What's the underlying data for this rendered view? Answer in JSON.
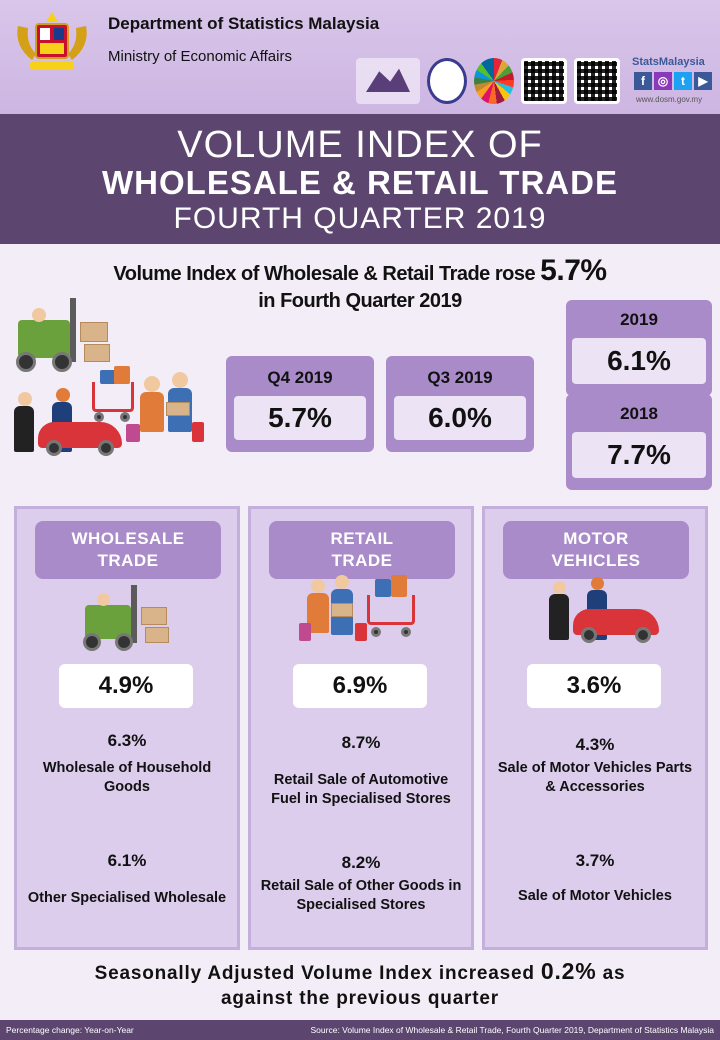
{
  "header": {
    "department": "Department of Statistics Malaysia",
    "ministry": "Ministry of Economic Affairs",
    "brand": "StatsMalaysia",
    "website": "www.dosm.gov.my"
  },
  "title": {
    "line1": "VOLUME INDEX OF",
    "line2": "WHOLESALE & RETAIL TRADE",
    "line3": "FOURTH QUARTER 2019"
  },
  "headline": {
    "text": "Volume Index of Wholesale & Retail Trade rose ",
    "value": "5.7%",
    "line2": "in Fourth Quarter 2019"
  },
  "quarters": [
    {
      "label": "Q4 2019",
      "value": "5.7%"
    },
    {
      "label": "Q3 2019",
      "value": "6.0%"
    }
  ],
  "years": [
    {
      "label": "2019",
      "value": "6.1%"
    },
    {
      "label": "2018",
      "value": "7.7%"
    }
  ],
  "sectors": [
    {
      "title_line1": "WHOLESALE",
      "title_line2": "TRADE",
      "value": "4.9%",
      "sub": [
        {
          "pct": "6.3%",
          "label": "Wholesale of Household Goods"
        },
        {
          "pct": "6.1%",
          "label": "Other Specialised Wholesale"
        }
      ]
    },
    {
      "title_line1": "RETAIL",
      "title_line2": "TRADE",
      "value": "6.9%",
      "sub": [
        {
          "pct": "8.7%",
          "label": "Retail Sale of Automotive Fuel in Specialised Stores"
        },
        {
          "pct": "8.2%",
          "label": "Retail Sale of Other Goods in Specialised Stores"
        }
      ]
    },
    {
      "title_line1": "MOTOR",
      "title_line2": "VEHICLES",
      "value": "3.6%",
      "sub": [
        {
          "pct": "4.3%",
          "label": "Sale of Motor Vehicles Parts & Accessories"
        },
        {
          "pct": "3.7%",
          "label": "Sale of Motor Vehicles"
        }
      ]
    }
  ],
  "footer": {
    "line1_pre": "Seasonally Adjusted Volume Index increased ",
    "line1_value": "0.2%",
    "line1_post": " as",
    "line2": "against the previous quarter",
    "note_left": "Percentage change: Year-on-Year",
    "note_right": "Source: Volume Index of Wholesale & Retail Trade, Fourth Quarter 2019, Department of Statistics Malaysia"
  },
  "colors": {
    "header_bg": "#d9c6ea",
    "title_band": "#5c4670",
    "card": "#a98bc9",
    "card_inner": "#ece3f4",
    "panel": "#dccdec"
  },
  "icons": [
    "malaysia-crest-icon",
    "census-logo-icon",
    "hari-statistik-icon",
    "sdg-wheel-icon",
    "qr-code-icon",
    "facebook-icon",
    "instagram-icon",
    "twitter-icon",
    "youtube-icon",
    "forklift-icon",
    "shoppers-icon",
    "car-service-icon"
  ]
}
